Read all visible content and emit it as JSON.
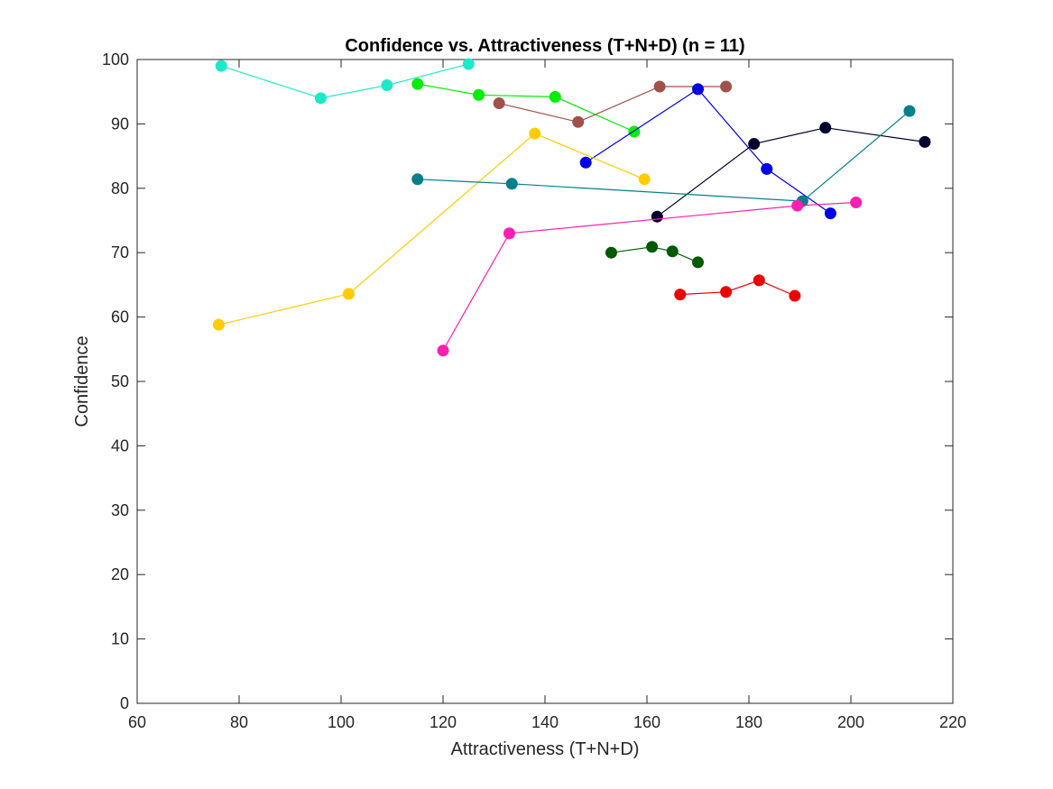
{
  "chart_data": {
    "type": "line",
    "title": "Confidence vs. Attractiveness (T+N+D) (n = 11)",
    "xlabel": "Attractiveness (T+N+D)",
    "ylabel": "Confidence",
    "xlim": [
      60,
      220
    ],
    "ylim": [
      0,
      100
    ],
    "xticks": [
      60,
      80,
      100,
      120,
      140,
      160,
      180,
      200,
      220
    ],
    "yticks": [
      0,
      10,
      20,
      30,
      40,
      50,
      60,
      70,
      80,
      90,
      100
    ],
    "xtick_labels": [
      "60",
      "80",
      "100",
      "120",
      "140",
      "160",
      "180",
      "200",
      "220"
    ],
    "ytick_labels": [
      "0",
      "10",
      "20",
      "30",
      "40",
      "50",
      "60",
      "70",
      "80",
      "90",
      "100"
    ],
    "grid": false,
    "legend": "none",
    "series": [
      {
        "color": "#1de9c9",
        "points": [
          [
            76.5,
            99
          ],
          [
            96,
            94
          ],
          [
            109,
            96
          ],
          [
            125,
            99.3
          ]
        ]
      },
      {
        "color": "#00ee00",
        "points": [
          [
            115,
            96.2
          ],
          [
            127,
            94.5
          ],
          [
            142,
            94.2
          ],
          [
            157.5,
            88.8
          ]
        ]
      },
      {
        "color": "#a0524a",
        "points": [
          [
            131,
            93.2
          ],
          [
            146.5,
            90.3
          ],
          [
            162.5,
            95.8
          ],
          [
            175.5,
            95.8
          ]
        ]
      },
      {
        "color": "#0000e6",
        "points": [
          [
            148,
            84
          ],
          [
            170,
            95.4
          ],
          [
            183.5,
            83
          ],
          [
            196,
            76.1
          ]
        ]
      },
      {
        "color": "#00002e",
        "points": [
          [
            162,
            75.6
          ],
          [
            181,
            86.9
          ],
          [
            195,
            89.4
          ],
          [
            214.5,
            87.2
          ]
        ]
      },
      {
        "color": "#ffcc00",
        "points": [
          [
            76,
            58.8
          ],
          [
            101.5,
            63.6
          ],
          [
            138,
            88.5
          ],
          [
            159.5,
            81.4
          ]
        ]
      },
      {
        "color": "#00808a",
        "points": [
          [
            115,
            81.4
          ],
          [
            133.5,
            80.7
          ],
          [
            190.5,
            78
          ],
          [
            211.5,
            92
          ]
        ]
      },
      {
        "color": "#ff1fb0",
        "points": [
          [
            120,
            54.8
          ],
          [
            133,
            73
          ],
          [
            189.5,
            77.3
          ],
          [
            201,
            77.8
          ]
        ]
      },
      {
        "color": "#005a00",
        "points": [
          [
            153,
            70
          ],
          [
            161,
            70.9
          ],
          [
            165,
            70.2
          ],
          [
            170,
            68.5
          ]
        ]
      },
      {
        "color": "#ee0000",
        "points": [
          [
            166.5,
            63.5
          ],
          [
            175.5,
            63.9
          ],
          [
            182,
            65.7
          ],
          [
            189,
            63.3
          ]
        ]
      }
    ]
  }
}
